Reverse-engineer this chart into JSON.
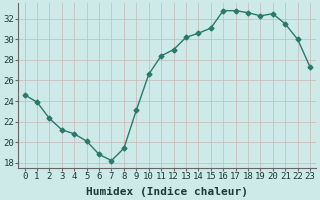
{
  "x": [
    0,
    1,
    2,
    3,
    4,
    5,
    6,
    7,
    8,
    9,
    10,
    11,
    12,
    13,
    14,
    15,
    16,
    17,
    18,
    19,
    20,
    21,
    22,
    23
  ],
  "y": [
    24.6,
    23.9,
    22.3,
    21.2,
    20.8,
    20.1,
    18.8,
    18.2,
    19.4,
    23.1,
    26.6,
    28.4,
    29.0,
    30.2,
    30.6,
    31.1,
    32.8,
    32.8,
    32.6,
    32.3,
    32.5,
    31.5,
    30.0,
    27.3
  ],
  "line_color": "#2a7a6a",
  "marker": "D",
  "marker_size": 2.5,
  "bg_color": "#ceeae8",
  "grid_color_major": "#c8b8b8",
  "grid_color_minor": "#dde8e6",
  "xlabel": "Humidex (Indice chaleur)",
  "ylim": [
    17.5,
    33.5
  ],
  "yticks": [
    18,
    20,
    22,
    24,
    26,
    28,
    30,
    32
  ],
  "xticks": [
    0,
    1,
    2,
    3,
    4,
    5,
    6,
    7,
    8,
    9,
    10,
    11,
    12,
    13,
    14,
    15,
    16,
    17,
    18,
    19,
    20,
    21,
    22,
    23
  ],
  "xlabel_fontsize": 8,
  "tick_fontsize": 6.5
}
